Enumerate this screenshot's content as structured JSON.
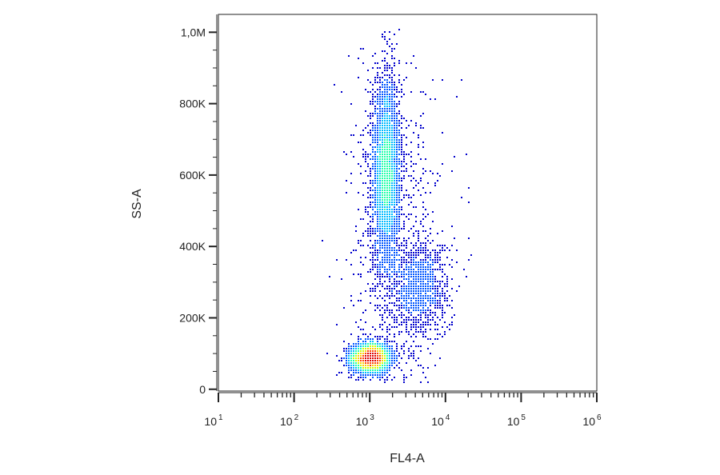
{
  "chart_data": {
    "type": "scatter",
    "title": "",
    "xlabel": "FL4-A",
    "ylabel": "SS-A",
    "x_scale": "log",
    "xlim": [
      10,
      1000000
    ],
    "ylim": [
      -5000,
      1050000
    ],
    "x_ticks": [
      {
        "value": 10,
        "base": "10",
        "exp": "1"
      },
      {
        "value": 100,
        "base": "10",
        "exp": "2"
      },
      {
        "value": 1000,
        "base": "10",
        "exp": "3"
      },
      {
        "value": 10000,
        "base": "10",
        "exp": "4"
      },
      {
        "value": 100000,
        "base": "10",
        "exp": "5"
      },
      {
        "value": 1000000,
        "base": "10",
        "exp": "6"
      }
    ],
    "y_ticks": [
      {
        "value": 0,
        "label": "0"
      },
      {
        "value": 200000,
        "label": "200K"
      },
      {
        "value": 400000,
        "label": "400K"
      },
      {
        "value": 600000,
        "label": "600K"
      },
      {
        "value": 800000,
        "label": "800K"
      },
      {
        "value": 1000000,
        "label": "1,0M"
      }
    ],
    "grid": false,
    "colormap": [
      "#0000cc",
      "#0055ff",
      "#00bbff",
      "#22ffaa",
      "#ccff00",
      "#ffcc00",
      "#ff4400",
      "#dd0000"
    ],
    "populations": [
      {
        "x_center": 1000,
        "y_center": 90000,
        "x_spread_log": 0.14,
        "y_spread": 22000,
        "count": 2200
      },
      {
        "x_center": 1600,
        "y_center": 610000,
        "x_spread_log": 0.09,
        "y_spread": 140000,
        "count": 3000
      },
      {
        "x_center": 4500,
        "y_center": 290000,
        "x_spread_log": 0.2,
        "y_spread": 65000,
        "count": 900
      },
      {
        "x_center": 2200,
        "y_center": 400000,
        "x_spread_log": 0.3,
        "y_spread": 240000,
        "count": 900
      }
    ]
  }
}
